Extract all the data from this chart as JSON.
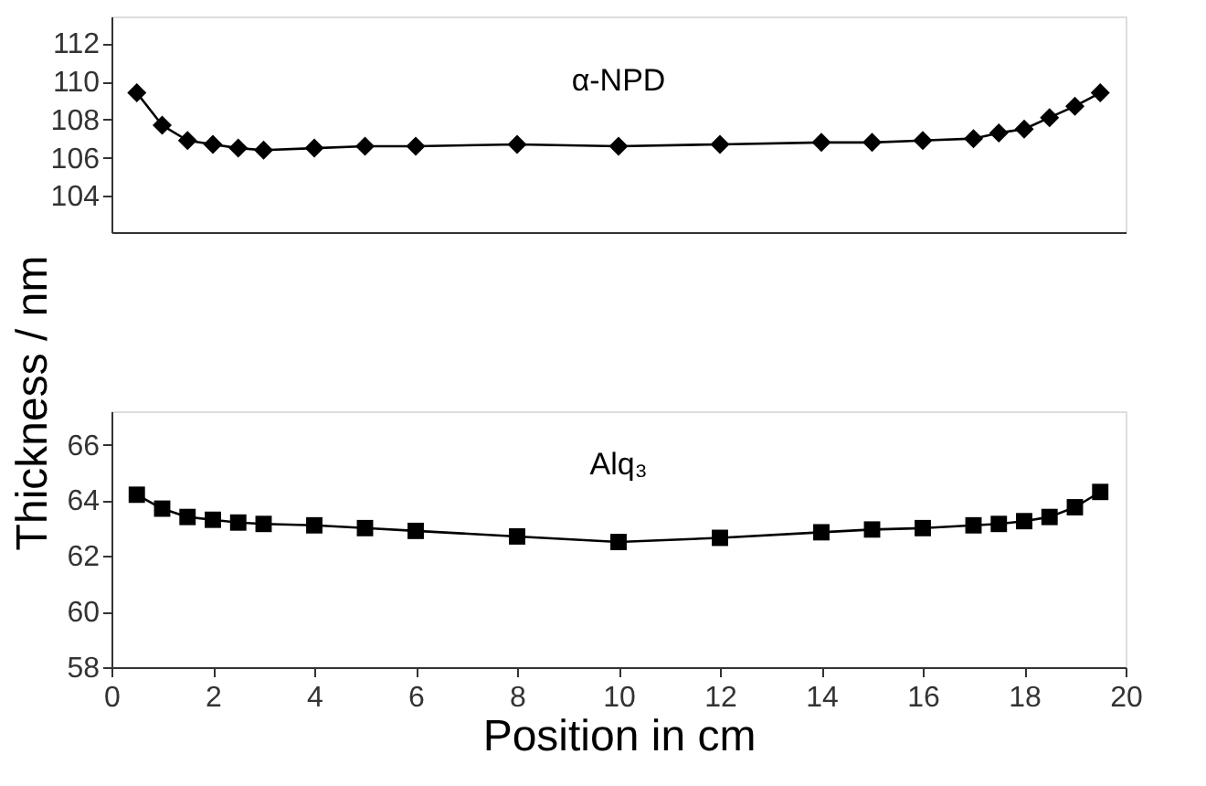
{
  "chart_data": [
    {
      "type": "line",
      "ylim": [
        102.1,
        113.4
      ],
      "yticks": [
        104,
        106,
        108,
        110,
        112
      ],
      "xlim": [
        0,
        20
      ],
      "xticks": [
        0,
        2,
        4,
        6,
        8,
        10,
        12,
        14,
        16,
        18,
        20
      ],
      "tick_labels": "y",
      "grid": false,
      "line_style": "solid",
      "series": [
        {
          "name": "α-NPD",
          "color": "#000000",
          "marker": "diamond",
          "x": [
            0.5,
            1,
            1.5,
            2,
            2.5,
            3,
            4,
            5,
            6,
            8,
            10,
            12,
            14,
            15,
            16,
            17,
            17.5,
            18,
            18.5,
            19,
            19.5
          ],
          "values": [
            109.4,
            107.7,
            106.9,
            106.7,
            106.5,
            106.4,
            106.5,
            106.6,
            106.6,
            106.7,
            106.6,
            106.7,
            106.8,
            106.8,
            106.9,
            107.0,
            107.3,
            107.5,
            108.1,
            108.7,
            109.4
          ]
        }
      ]
    },
    {
      "type": "line",
      "ylim": [
        58,
        67.2
      ],
      "yticks": [
        58,
        60,
        62,
        64,
        66
      ],
      "xlim": [
        0,
        20
      ],
      "xticks": [
        0,
        2,
        4,
        6,
        8,
        10,
        12,
        14,
        16,
        18,
        20
      ],
      "xlabel": "Position in cm",
      "ylabel": "Thickness / nm",
      "grid": false,
      "line_style": "solid",
      "series": [
        {
          "name": "Alq₃",
          "color": "#000000",
          "marker": "square",
          "x": [
            0.5,
            1,
            1.5,
            2,
            2.5,
            3,
            4,
            5,
            6,
            8,
            10,
            12,
            14,
            15,
            16,
            17,
            17.5,
            18,
            18.5,
            19,
            19.5
          ],
          "values": [
            64.2,
            63.7,
            63.4,
            63.3,
            63.2,
            63.15,
            63.1,
            63.0,
            62.9,
            62.7,
            62.5,
            62.65,
            62.85,
            62.95,
            63.0,
            63.1,
            63.15,
            63.25,
            63.4,
            63.75,
            64.3
          ]
        }
      ]
    }
  ]
}
